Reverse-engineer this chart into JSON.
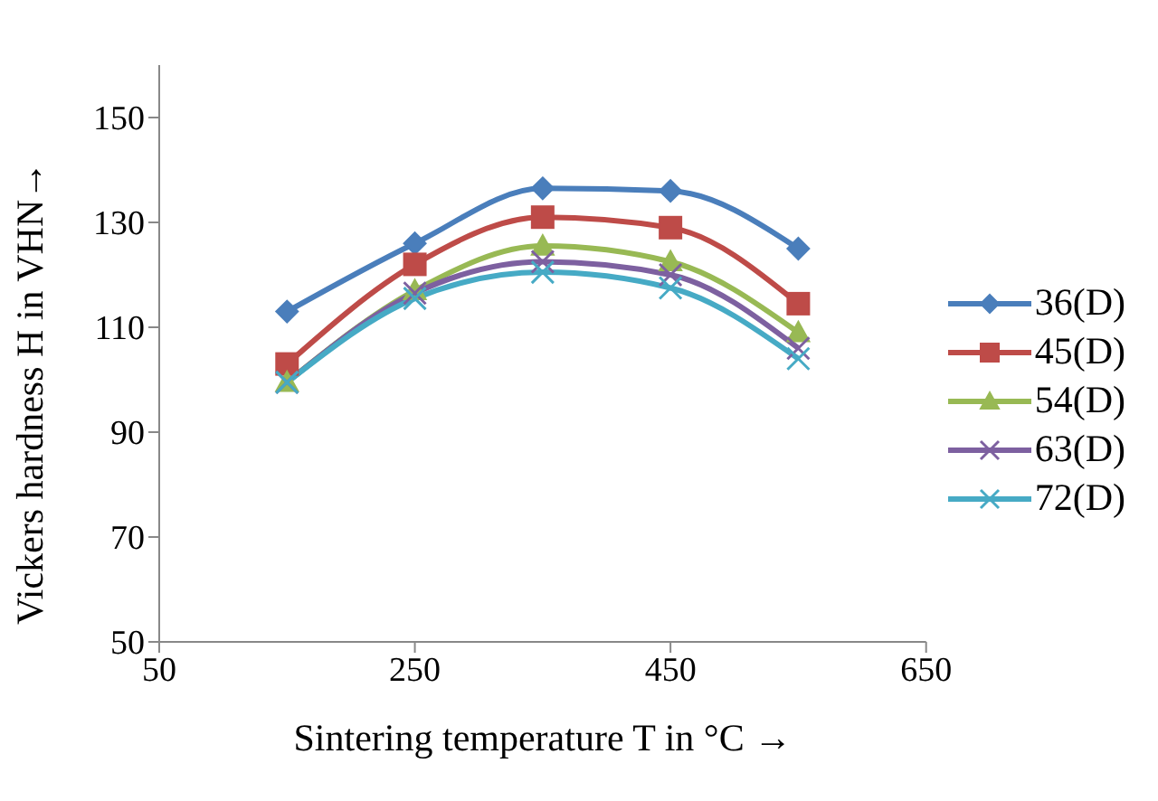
{
  "chart_data": {
    "type": "line",
    "xlabel": "Sintering temperature T in °C →",
    "ylabel": "Vickers hardness  H in VHN→",
    "x": [
      150,
      250,
      350,
      450,
      550
    ],
    "series": [
      {
        "name": "36(D)",
        "color": "#4a7ebb",
        "marker": "diamond",
        "values": [
          113,
          126,
          136.5,
          136,
          125
        ]
      },
      {
        "name": "45(D)",
        "color": "#be4b48",
        "marker": "square",
        "values": [
          103,
          122,
          131,
          129,
          114.5
        ]
      },
      {
        "name": "54(D)",
        "color": "#98b954",
        "marker": "triangle",
        "values": [
          99.5,
          117,
          125.5,
          122.5,
          109
        ]
      },
      {
        "name": "63(D)",
        "color": "#7d60a0",
        "marker": "cross",
        "values": [
          99.5,
          116.5,
          122.5,
          120,
          106
        ]
      },
      {
        "name": "72(D)",
        "color": "#46aac5",
        "marker": "cross",
        "values": [
          99.5,
          115.5,
          120.5,
          117.5,
          104
        ]
      }
    ],
    "xlim": [
      50,
      650
    ],
    "xticks": [
      50,
      250,
      450,
      650
    ],
    "ylim": [
      50,
      160
    ],
    "yticks": [
      50,
      70,
      90,
      110,
      130,
      150
    ],
    "grid": false,
    "legend": "right"
  }
}
